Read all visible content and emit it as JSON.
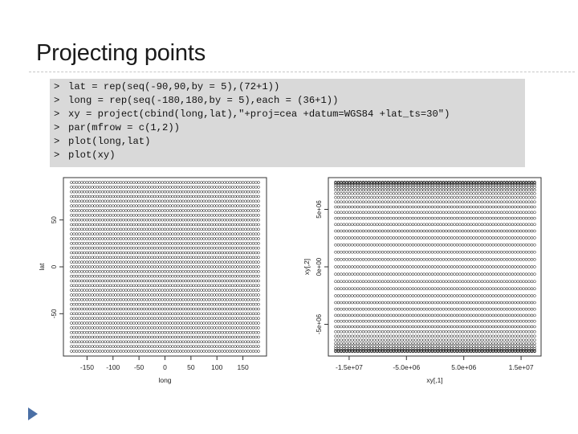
{
  "slide": {
    "title": "Projecting points"
  },
  "code": {
    "prompt": ">",
    "lines": [
      "lat = rep(seq(-90,90,by = 5),(72+1))",
      "long = rep(seq(-180,180,by = 5),each = (36+1))",
      "xy = project(cbind(long,lat),\"+proj=cea +datum=WGS84 +lat_ts=30\")",
      "par(mfrow = c(1,2))",
      "plot(long,lat)",
      "plot(xy)"
    ]
  },
  "chart_data": [
    {
      "type": "scatter",
      "title": "",
      "xlabel": "long",
      "ylabel": "lat",
      "x_range": [
        -180,
        180
      ],
      "y_range": [
        -90,
        90
      ],
      "x_grid": {
        "from": -180,
        "to": 180,
        "by": 5
      },
      "y_grid": {
        "from": -90,
        "to": 90,
        "by": 5
      },
      "xticks": [
        -150,
        -100,
        -50,
        0,
        50,
        100,
        150
      ],
      "xtick_labels": [
        "-150",
        "-100",
        "-50",
        "0",
        "50",
        "100",
        "150"
      ],
      "yticks": [
        -50,
        0,
        50
      ],
      "ytick_labels": [
        "-50",
        "0",
        "50"
      ],
      "marker": "open-circle",
      "grid": false
    },
    {
      "type": "scatter",
      "title": "",
      "xlabel": "xy[,1]",
      "ylabel": "xy[,2]",
      "projection": "+proj=cea +datum=WGS84 +lat_ts=30",
      "x_range": [
        -17367530,
        17367530
      ],
      "y_range": [
        -7341000,
        7341000
      ],
      "xticks": [
        -15000000,
        -5000000,
        5000000,
        15000000
      ],
      "xtick_labels": [
        "-1.5e+07",
        "-5.0e+06",
        "5.0e+06",
        "1.5e+07"
      ],
      "yticks": [
        -5000000,
        0,
        5000000
      ],
      "ytick_labels": [
        "-5e+06",
        "0e+00",
        "5e+06"
      ],
      "marker": "open-circle",
      "grid": false
    }
  ]
}
